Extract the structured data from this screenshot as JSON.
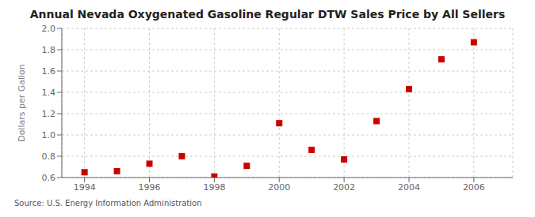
{
  "chart_data": {
    "type": "scatter",
    "title": "Annual Nevada Oxygenated Gasoline Regular DTW Sales Price by All Sellers",
    "ylabel": "Dollars per Gallon",
    "source": "Source: U.S. Energy Information Administration",
    "x": [
      1994,
      1995,
      1996,
      1997,
      1998,
      1999,
      2000,
      2001,
      2002,
      2003,
      2004,
      2005,
      2006
    ],
    "values": [
      0.65,
      0.66,
      0.73,
      0.8,
      0.61,
      0.71,
      1.11,
      0.86,
      0.77,
      1.13,
      1.43,
      1.71,
      1.87
    ],
    "color": "#cc0000",
    "marker": "square",
    "xlim": [
      1993.3,
      2007.2
    ],
    "xticks": [
      1994,
      1996,
      1998,
      2000,
      2002,
      2004,
      2006
    ],
    "ylim": [
      0.6,
      2.0
    ],
    "yticks": [
      0.6,
      0.8,
      {
        "value": 1.0,
        "label": "1.0"
      },
      1.2,
      1.4,
      1.6,
      1.8,
      {
        "value": 2.0,
        "label": "2.0"
      }
    ],
    "grid": true
  }
}
